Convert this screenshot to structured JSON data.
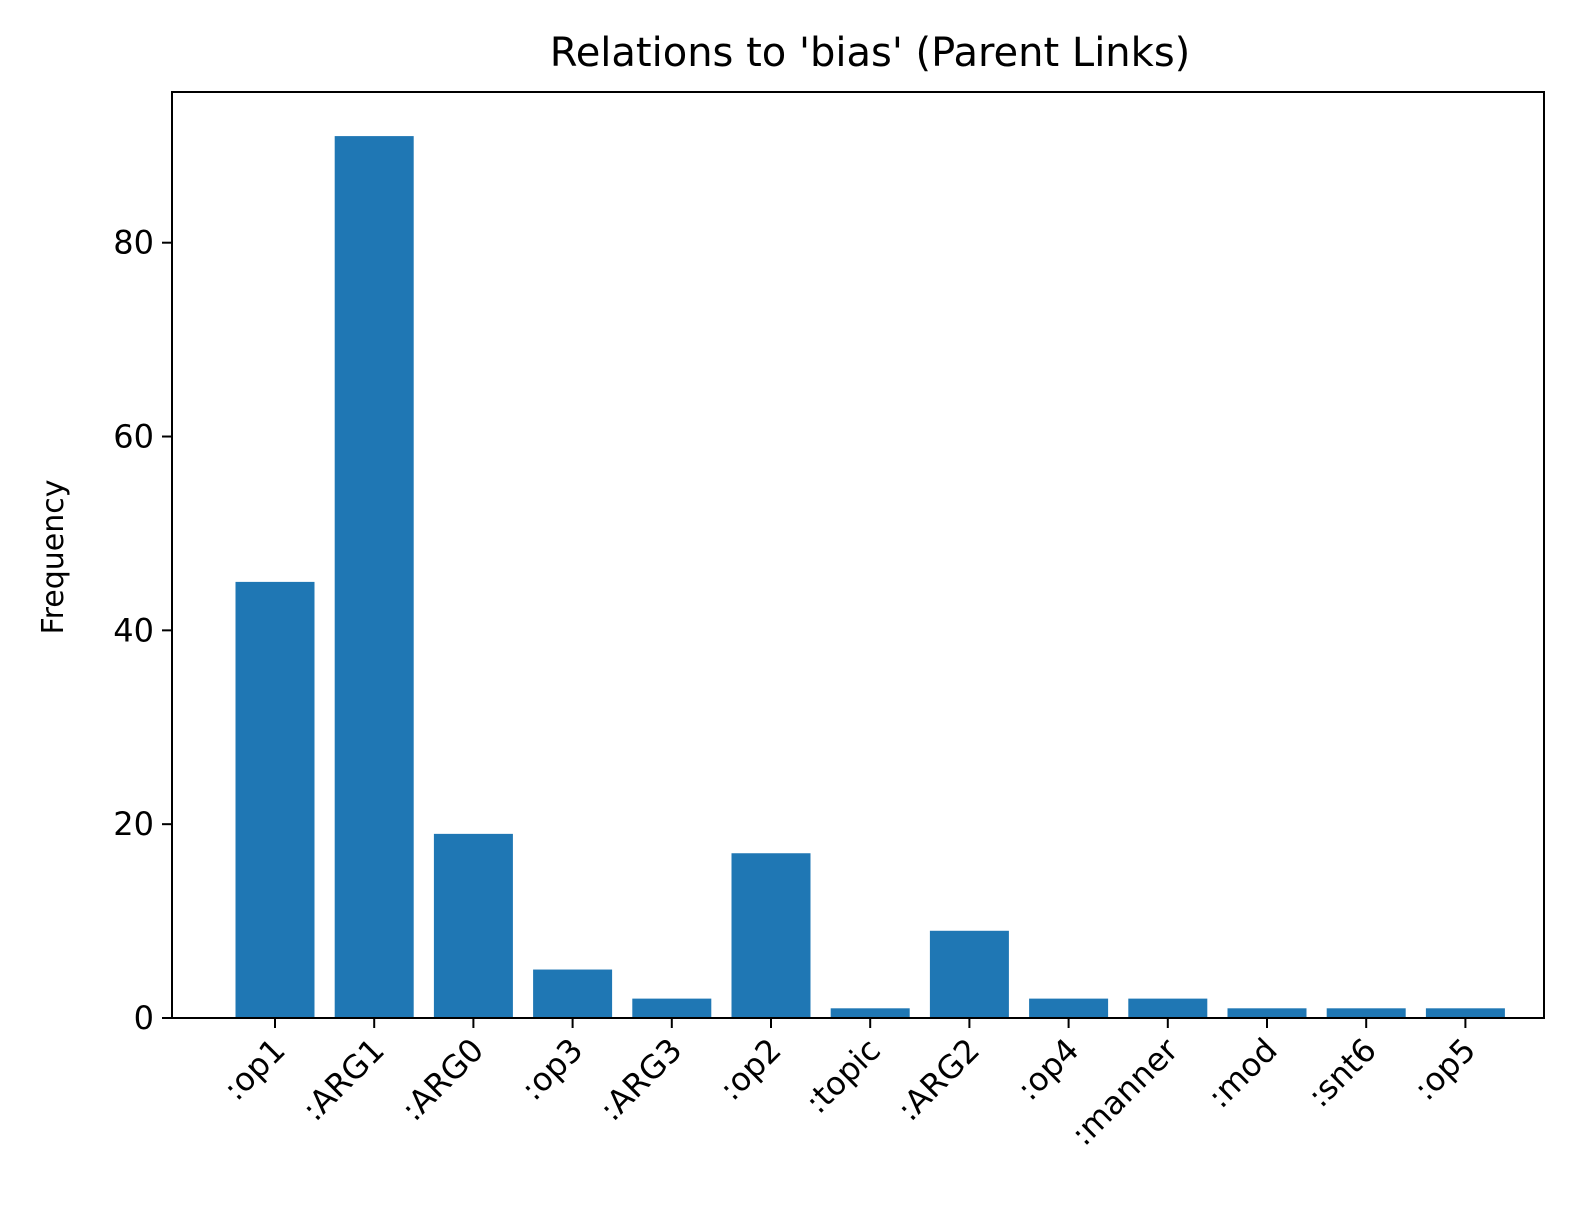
{
  "chart_data": {
    "type": "bar",
    "title": "Relations to 'bias' (Parent Links)",
    "xlabel": "",
    "ylabel": "Frequency",
    "categories": [
      ":op1",
      ":ARG1",
      ":ARG0",
      ":op3",
      ":ARG3",
      ":op2",
      ":topic",
      ":ARG2",
      ":op4",
      ":manner",
      ":mod",
      ":snt6",
      ":op5"
    ],
    "values": [
      45,
      91,
      19,
      5,
      2,
      17,
      1,
      9,
      2,
      2,
      1,
      1,
      1
    ],
    "ylim": [
      0,
      95.55
    ],
    "yticks": [
      0,
      20,
      40,
      60,
      80
    ],
    "bar_color": "#1f77b4",
    "grid": false,
    "legend": "none"
  }
}
